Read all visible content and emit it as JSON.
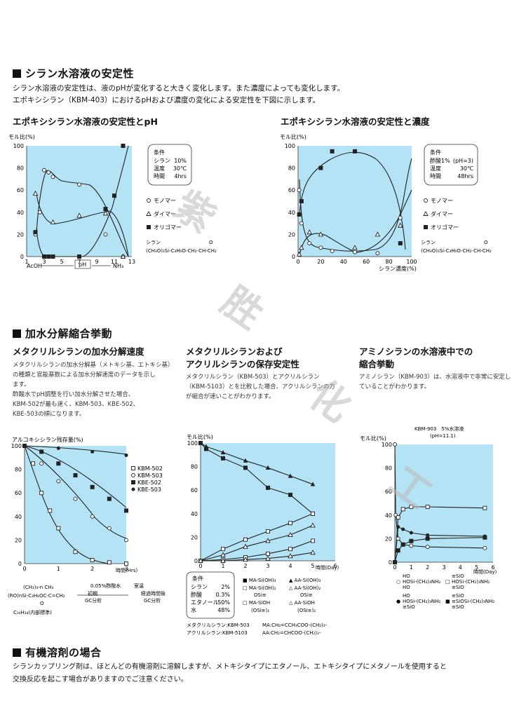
{
  "section1": {
    "title": "シラン水溶液の安定性",
    "line1": "シラン水溶液の安定性は、液のpHが変化すると大きく変化します。また濃度によっても変化します。",
    "line2": "エポキシシラン（KBM-403）におけるpHおよび濃度の変化による安定性を下図に示します。"
  },
  "chart1": {
    "title": "エポキシシラン水溶液の安定性とpH",
    "ylabel": "モル比(%)",
    "yticks": [
      "0",
      "20",
      "40",
      "60",
      "80",
      "100"
    ],
    "xticks": [
      "1",
      "3",
      "5",
      "7",
      "9",
      "11",
      "13"
    ],
    "xaxis_left": "AcOH",
    "xaxis_mid": "pH",
    "xaxis_right": "NH₃",
    "cond_title": "条件",
    "cond_rows": [
      [
        "シラン",
        "10%"
      ],
      [
        "温度",
        "30℃"
      ],
      [
        "時間",
        "4hrs"
      ]
    ],
    "legend": [
      "モノマー",
      "ダイマー",
      "オリゴマー"
    ],
    "formula_label": "シラン",
    "formula": "(CH₃O)₃Si-C₃H₆O-CH₂-CH-CH₂",
    "formula_o": "O"
  },
  "chart2": {
    "title": "エポキシシラン水溶液の安定性と濃度",
    "ylabel": "モル比(%)",
    "yticks": [
      "0",
      "20",
      "40",
      "60",
      "80",
      "100"
    ],
    "xticks": [
      "0",
      "20",
      "40",
      "60",
      "80",
      "100"
    ],
    "xlabel": "シラン濃度(%)",
    "cond_title": "条件",
    "cond_rows": [
      [
        "酢酸1%",
        "(pH=3)"
      ],
      [
        "温度",
        "30℃"
      ],
      [
        "時間",
        "48hrs"
      ]
    ],
    "legend": [
      "モノマー",
      "ダイマー",
      "オリゴマー"
    ],
    "formula_label": "シラン",
    "formula": "(CH₃O)₃Si-C₃H₆O-CH₂-CH-CH₂",
    "formula_o": "O"
  },
  "section2": {
    "title": "加水分解縮合挙動"
  },
  "col1": {
    "title": "メタクリルシランの加水分解速度",
    "text": [
      "メタクリルシランの加水分解基（メトキシ基、エトキシ基）",
      "の種類と官能基数による加水分解速度のデータを示し",
      "ます。",
      "酢酸水でpH調整を行い加水分解させた場合、",
      "KBM-502が最も速く、KBM-503、KBE-502、",
      "KBE-503の順になります。"
    ]
  },
  "col2": {
    "title1": "メタクリルシランおよび",
    "title2": "アクリルシランの保存安定性",
    "text": [
      "メタクリルシラン（KBM-503）とアクリルシラン",
      "（KBM-5103）とを比較した場合、アクリルシランの方",
      "が縮合が速いことがわかります。"
    ]
  },
  "col3": {
    "title1": "アミノシランの水溶液中での",
    "title2": "縮合挙動",
    "text": [
      "アミノシラン（KBM-903）は、水溶液中で非常に安定し",
      "ていることがわかります。"
    ]
  },
  "chart3": {
    "ylabel": "アルコキシシラン残存量(%)",
    "yticks": [
      "0",
      "20",
      "40",
      "60",
      "80",
      "100"
    ],
    "xticks": [
      "0",
      "1",
      "2",
      "3"
    ],
    "xlabel": "時間(Hrs)",
    "legend": [
      "KBM-502",
      "KBM-503",
      "KBE-502",
      "KBE-503"
    ],
    "scheme_top": "(CH₃)₃-n    CH₃",
    "scheme_main": "(RO)nSi-C₃H₆OC-C=CH₂",
    "scheme_o": "O",
    "scheme_step1": "0.05%酢酸水",
    "scheme_step2": "室温",
    "scheme_a1": "初期",
    "scheme_a2": "GC分析",
    "scheme_b1": "経過時間後",
    "scheme_b2": "GC分析",
    "scheme_std": "C₁₆H₃₄(内部標準)"
  },
  "chart4": {
    "ylabel": "モル比(%)",
    "yticks": [
      "0",
      "20",
      "40",
      "60",
      "80",
      "100"
    ],
    "xticks": [
      "0",
      "1",
      "2",
      "3",
      "4",
      "5",
      "6"
    ],
    "xlabel": "時間(Day)",
    "cond_title": "条件",
    "cond_rows": [
      [
        "シラン",
        "2%"
      ],
      [
        "酢酸",
        "0.3%"
      ],
      [
        "エタノール",
        "50%"
      ],
      [
        "水",
        "48%"
      ]
    ],
    "legend": [
      {
        "sym": "■",
        "text": "MA-Si(OH)₃"
      },
      {
        "sym": "▲",
        "text": "AA-Si(OH)₃"
      },
      {
        "sym": "□",
        "text": "MA-Si(OH)₂"
      },
      {
        "sym": "△",
        "text": "AA-Si(OH)₂"
      },
      {
        "sym": "",
        "text": "OSi≡"
      },
      {
        "sym": "",
        "text": "OSi≡"
      },
      {
        "sym": "□",
        "text": "MA-SiOH"
      },
      {
        "sym": "△",
        "text": "AA-SiOH"
      },
      {
        "sym": "",
        "text": "(OSi≡)₂"
      },
      {
        "sym": "",
        "text": "(OSi≡)₂"
      }
    ],
    "foot1": "メタクリルシラン:KBM-503",
    "foot2": "アクリルシラン:KBM-5103",
    "foot3": "MA:CH₂=CCH₃COO-(CH₂)₃-",
    "foot4": "AA:CH₂=CHCOO-(CH₂)₃-"
  },
  "chart5": {
    "title1": "KBM-903　5%水溶液",
    "title2": "(pH=11.1)",
    "ylabel": "モル比(%)",
    "yticks": [
      "0",
      "20",
      "40",
      "60",
      "80",
      "100"
    ],
    "xticks": [
      "0",
      "1",
      "2",
      "3",
      "4",
      "5",
      "6"
    ],
    "xlabel": "時間(Day)",
    "legend": [
      {
        "sym": "○",
        "lines": [
          "HO",
          "HOSi-(CH₂)₃NH₂",
          "HO"
        ]
      },
      {
        "sym": "□",
        "lines": [
          "≡SiO",
          "HOSi-(CH₂)₃NH₂",
          "≡SiO"
        ]
      },
      {
        "sym": "●",
        "lines": [
          "HO",
          "HOSi-(CH₂)₃NH₂",
          "≡SiO"
        ]
      },
      {
        "sym": "■",
        "lines": [
          "≡SiO",
          "≡SiOSi-(CH₂)₃NH₂",
          "≡SiO"
        ]
      }
    ]
  },
  "section3": {
    "title": "有機溶剤の場合",
    "line1": "シランカップリング剤は、ほとんどの有機溶剤に溶解しますが、メトキシタイプにエタノール、エトキシタイプにメタノールを使用すると",
    "line2": "交換反応を起こす場合がありますのでご注意ください。"
  },
  "watermark": [
    "紫",
    "胜",
    "化",
    "工"
  ],
  "colors": {
    "plot_bg": "#b3e3f4",
    "text": "#111111",
    "watermark": "#bbbbbb"
  },
  "chart_data": [
    {
      "type": "scatter",
      "title": "エポキシシラン水溶液の安定性とpH",
      "ylabel": "モル比(%)",
      "xlabel": "pH",
      "xlim": [
        1,
        13
      ],
      "ylim": [
        0,
        100
      ],
      "series": [
        {
          "name": "モノマー",
          "x": [
            2,
            2.5,
            3,
            3.5,
            4,
            7,
            10,
            12
          ],
          "y": [
            20,
            40,
            78,
            76,
            72,
            65,
            20,
            0
          ]
        },
        {
          "name": "ダイマー",
          "x": [
            2,
            4,
            7,
            10,
            12
          ],
          "y": [
            57,
            31,
            37,
            39,
            0
          ]
        },
        {
          "name": "オリゴマー",
          "x": [
            2,
            3,
            3.5,
            4,
            7,
            10,
            11,
            12
          ],
          "y": [
            22,
            0,
            0,
            0,
            0,
            43,
            55,
            100
          ]
        }
      ]
    },
    {
      "type": "scatter",
      "title": "エポキシシラン水溶液の安定性と濃度",
      "ylabel": "モル比(%)",
      "xlabel": "シラン濃度(%)",
      "xlim": [
        0,
        100
      ],
      "ylim": [
        0,
        100
      ],
      "series": [
        {
          "name": "モノマー",
          "x": [
            1,
            3,
            10,
            20,
            30,
            50,
            70,
            90
          ],
          "y": [
            60,
            30,
            12,
            8,
            5,
            4,
            3,
            35
          ]
        },
        {
          "name": "ダイマー",
          "x": [
            1,
            3,
            10,
            20,
            50,
            70,
            90
          ],
          "y": [
            2,
            8,
            22,
            20,
            8,
            20,
            28
          ]
        },
        {
          "name": "オリゴマー",
          "x": [
            1,
            3,
            20,
            30,
            50,
            90
          ],
          "y": [
            38,
            50,
            80,
            95,
            95,
            12
          ]
        }
      ]
    },
    {
      "type": "scatter",
      "title": "",
      "ylabel": "アルコキシシラン残存量(%)",
      "xlabel": "時間(Hrs)",
      "xlim": [
        0,
        3
      ],
      "ylim": [
        0,
        100
      ],
      "series": [
        {
          "name": "KBM-502",
          "x": [
            0,
            0.25,
            0.5,
            0.75,
            1,
            1.5,
            2,
            2.5,
            3
          ],
          "y": [
            100,
            85,
            60,
            45,
            30,
            10,
            3,
            1,
            0
          ]
        },
        {
          "name": "KBM-503",
          "x": [
            0,
            0.5,
            1,
            1.5,
            2,
            2.5,
            3
          ],
          "y": [
            100,
            85,
            70,
            55,
            40,
            30,
            20
          ]
        },
        {
          "name": "KBE-502",
          "x": [
            0,
            0.5,
            1,
            1.5,
            2,
            2.5,
            3
          ],
          "y": [
            100,
            95,
            85,
            75,
            65,
            55,
            45
          ]
        },
        {
          "name": "KBE-503",
          "x": [
            0,
            1,
            2,
            3
          ],
          "y": [
            100,
            98,
            95,
            92
          ]
        }
      ]
    },
    {
      "type": "scatter",
      "title": "",
      "ylabel": "モル比(%)",
      "xlabel": "時間(Day)",
      "xlim": [
        0,
        6
      ],
      "ylim": [
        0,
        100
      ],
      "series": [
        {
          "name": "MA-Si(OH)₃",
          "x": [
            0,
            0.25,
            1,
            2,
            3,
            4,
            5
          ],
          "y": [
            100,
            95,
            87,
            79,
            62,
            56,
            40
          ]
        },
        {
          "name": "AA-Si(OH)₃",
          "x": [
            0,
            0.25,
            1,
            2,
            3,
            4,
            5
          ],
          "y": [
            100,
            97,
            92,
            85,
            79,
            72,
            65
          ]
        },
        {
          "name": "MA-Si(OH)₂OSi≡",
          "x": [
            0,
            1,
            2,
            3,
            4,
            5
          ],
          "y": [
            0,
            10,
            18,
            25,
            32,
            40
          ]
        },
        {
          "name": "AA-Si(OH)₂OSi≡",
          "x": [
            0,
            1,
            2,
            3,
            4,
            5
          ],
          "y": [
            0,
            5,
            12,
            17,
            22,
            30
          ]
        },
        {
          "name": "MA-SiOH(OSi≡)₂",
          "x": [
            0,
            1,
            2,
            3,
            4,
            5
          ],
          "y": [
            0,
            1,
            3,
            6,
            10,
            17
          ]
        },
        {
          "name": "AA-SiOH(OSi≡)₂",
          "x": [
            0,
            1,
            2,
            3,
            4,
            5
          ],
          "y": [
            0,
            0,
            1,
            2,
            4,
            7
          ]
        }
      ]
    },
    {
      "type": "line",
      "title": "KBM-903 5%水溶液 (pH=11.1)",
      "ylabel": "モル比(%)",
      "xlabel": "時間(Day)",
      "xlim": [
        0,
        6
      ],
      "ylim": [
        0,
        100
      ],
      "series": [
        {
          "name": "HOSi-(CH₂)₃NH₂ (HO, HO)",
          "x": [
            0,
            0.05,
            0.2,
            0.5,
            1,
            2,
            5.5
          ],
          "y": [
            100,
            40,
            20,
            15,
            14,
            13,
            12
          ]
        },
        {
          "name": "HOSi-(CH₂)₃NH₂ (≡SiO, ≡SiO)",
          "x": [
            0,
            0.2,
            0.5,
            1,
            2,
            5.5
          ],
          "y": [
            0,
            38,
            45,
            47,
            47,
            46
          ]
        },
        {
          "name": "HOSi-(CH₂)₃NH₂ (HO, ≡SiO)",
          "x": [
            0,
            0.2,
            0.5,
            1,
            2,
            5.5
          ],
          "y": [
            0,
            30,
            28,
            25,
            23,
            22
          ]
        },
        {
          "name": "≡SiOSi-(CH₂)₃NH₂",
          "x": [
            0,
            0.2,
            0.5,
            1,
            2,
            5.5
          ],
          "y": [
            0,
            10,
            15,
            18,
            20,
            21
          ]
        }
      ]
    }
  ]
}
